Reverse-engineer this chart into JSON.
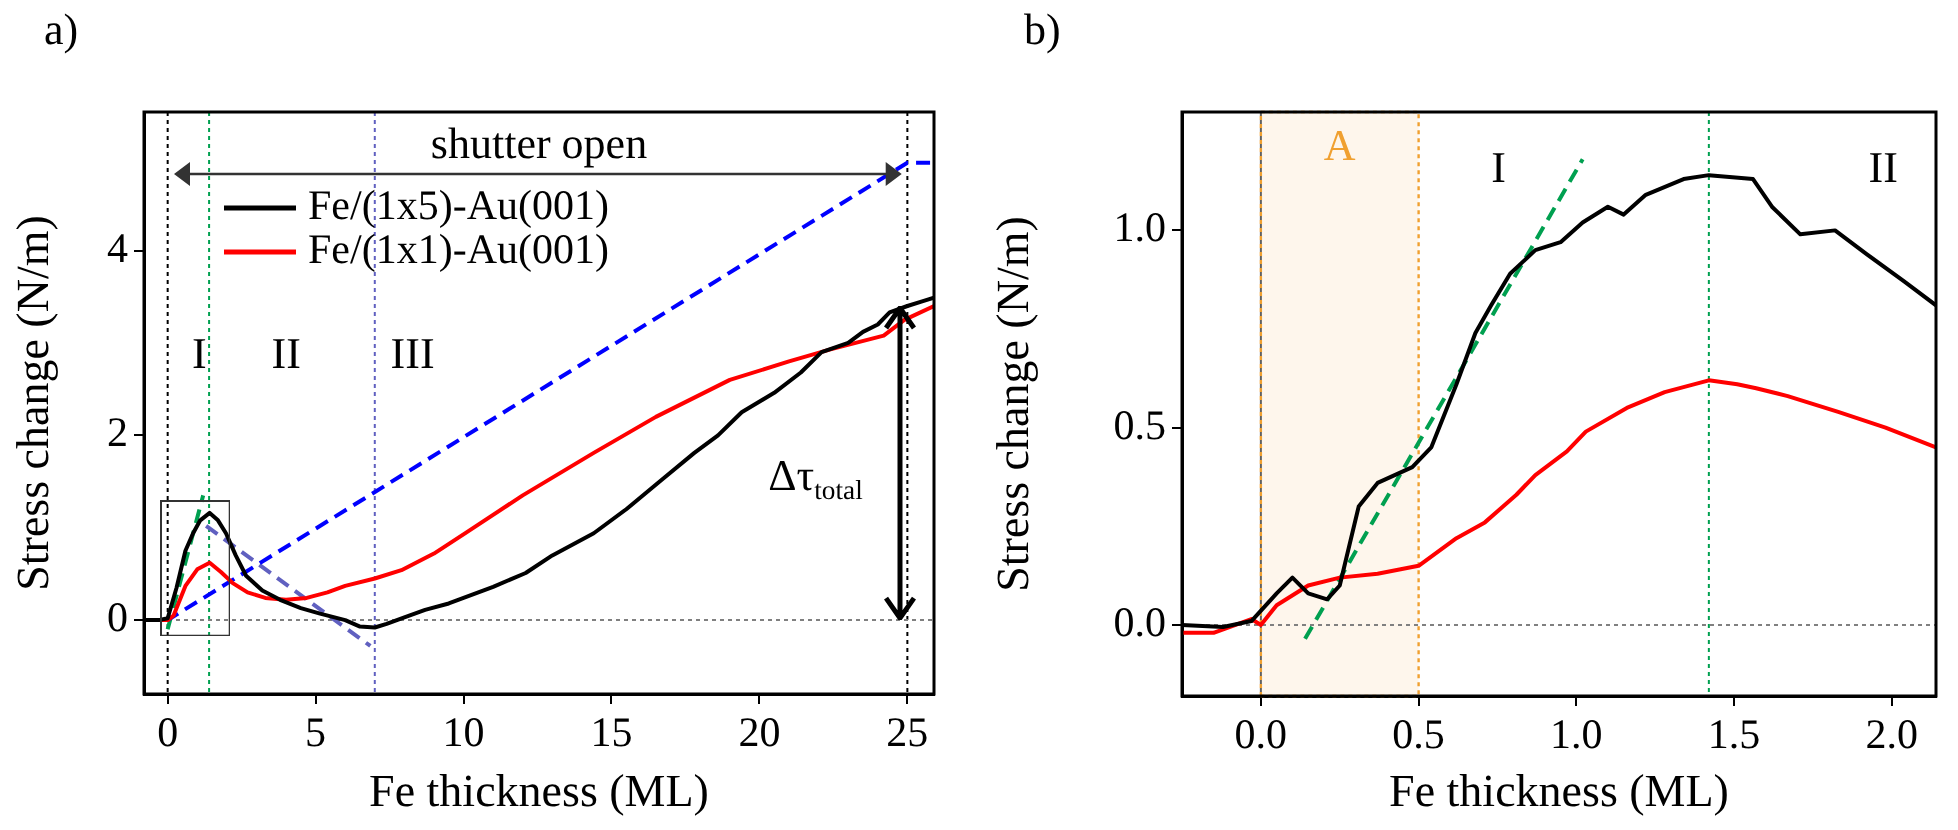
{
  "chart_data": [
    {
      "type": "line",
      "title": "a)",
      "xlabel": "Fe thickness (ML)",
      "ylabel": "Stress change (N/m)",
      "xlim": [
        -0.8,
        25.9
      ],
      "xticks": [
        0,
        5,
        10,
        15,
        20,
        25
      ],
      "ylim": [
        -0.8,
        5.5
      ],
      "yticks": [
        0,
        2,
        4
      ],
      "grid": false,
      "legend": "top left",
      "series": [
        {
          "name": "Fe/(1x5)-Au(001)",
          "color": "#000000",
          "x": [
            -0.8,
            -0.3,
            0,
            0.3,
            0.6,
            0.86,
            1.1,
            1.42,
            1.7,
            1.97,
            2.3,
            2.65,
            3.2,
            3.8,
            4.5,
            5.15,
            6,
            6.5,
            7,
            7.4,
            8,
            8.7,
            9.5,
            10,
            11,
            12.1,
            13,
            14.4,
            15.5,
            16.7,
            17.8,
            18.6,
            19.4,
            20.5,
            21.4,
            22.1,
            23,
            23.5,
            24,
            24.4,
            25,
            25.5,
            25.9
          ],
          "values": [
            0,
            0,
            0.02,
            0.35,
            0.75,
            0.94,
            1.08,
            1.16,
            1.08,
            0.94,
            0.7,
            0.48,
            0.32,
            0.22,
            0.13,
            0.07,
            0,
            -0.07,
            -0.08,
            -0.04,
            0.03,
            0.11,
            0.18,
            0.24,
            0.36,
            0.51,
            0.7,
            0.94,
            1.2,
            1.52,
            1.81,
            2.0,
            2.25,
            2.46,
            2.68,
            2.9,
            3.0,
            3.12,
            3.2,
            3.33,
            3.4,
            3.45,
            3.49
          ]
        },
        {
          "name": "Fe/(1x1)-Au(001)",
          "color": "#ff0000",
          "x": [
            -0.8,
            0,
            0.2,
            0.6,
            1.0,
            1.42,
            1.8,
            2.2,
            2.7,
            3.3,
            4.0,
            4.7,
            5.4,
            6,
            7,
            7.9,
            9,
            10.1,
            12,
            14.4,
            16.5,
            19,
            21,
            22.4,
            24.2,
            24.9,
            25.9
          ],
          "values": [
            0,
            0,
            0.05,
            0.37,
            0.55,
            0.62,
            0.52,
            0.4,
            0.3,
            0.24,
            0.22,
            0.24,
            0.3,
            0.37,
            0.45,
            0.54,
            0.72,
            0.95,
            1.35,
            1.81,
            2.2,
            2.6,
            2.8,
            2.93,
            3.08,
            3.25,
            3.4
          ]
        },
        {
          "color": "#0000ff",
          "line_style": "dashed",
          "x": [
            -0.8,
            0,
            25,
            25.9
          ],
          "values": [
            0,
            0,
            4.95,
            4.95
          ]
        },
        {
          "color": "#00a050",
          "line_style": "dashed",
          "x": [
            0,
            1.2
          ],
          "values": [
            -0.1,
            1.35
          ]
        },
        {
          "color": "#6060c0",
          "line_style": "dashed",
          "x": [
            1.3,
            6.85
          ],
          "values": [
            1.02,
            -0.28
          ]
        }
      ],
      "ref_lines": [
        {
          "axis": "x",
          "value": 0,
          "color": "#000000",
          "line_style": "dotted"
        },
        {
          "axis": "x",
          "value": 25,
          "color": "#000000",
          "line_style": "dotted"
        },
        {
          "axis": "x",
          "value": 1.4,
          "color": "#00a050",
          "line_style": "dotted"
        },
        {
          "axis": "x",
          "value": 7,
          "color": "#6060c0",
          "line_style": "dotted"
        },
        {
          "axis": "y",
          "value": 0,
          "color": "#808080",
          "line_style": "dotted"
        }
      ],
      "annotations": [
        "I",
        "II",
        "III",
        "shutter open",
        "Δτ$_{total}$"
      ]
    },
    {
      "type": "line",
      "title": "b)",
      "xlabel": "Fe thickness (ML)",
      "ylabel": "Stress change (N/m)",
      "xlim": [
        -0.25,
        2.14
      ],
      "xticks": [
        {
          "value": 0,
          "label": "0.0"
        },
        {
          "value": 0.5,
          "label": "0.5"
        },
        {
          "value": 1,
          "label": "1.0"
        },
        {
          "value": 1.5,
          "label": "1.5"
        },
        {
          "value": 2,
          "label": "2.0"
        }
      ],
      "ylim": [
        -0.18,
        1.3
      ],
      "yticks": [
        {
          "value": 0,
          "label": "0.0"
        },
        {
          "value": 0.5,
          "label": "0.5"
        },
        {
          "value": 1,
          "label": "1.0"
        }
      ],
      "grid": false,
      "series": [
        {
          "color": "#000000",
          "x": [
            -0.25,
            -0.12,
            -0.03,
            0.05,
            0.1,
            0.15,
            0.21,
            0.25,
            0.31,
            0.37,
            0.48,
            0.54,
            0.62,
            0.68,
            0.73,
            0.79,
            0.87,
            0.95,
            1.02,
            1.1,
            1.15,
            1.22,
            1.34,
            1.42,
            1.56,
            1.62,
            1.71,
            1.82,
            1.92,
            2.04,
            2.14
          ],
          "values": [
            0,
            -0.005,
            0.01,
            0.08,
            0.12,
            0.08,
            0.065,
            0.1,
            0.3,
            0.36,
            0.4,
            0.45,
            0.61,
            0.74,
            0.81,
            0.89,
            0.95,
            0.97,
            1.02,
            1.06,
            1.04,
            1.09,
            1.13,
            1.14,
            1.13,
            1.06,
            0.99,
            1.0,
            0.94,
            0.87,
            0.81
          ]
        },
        {
          "color": "#ff0000",
          "x": [
            -0.25,
            -0.15,
            -0.03,
            0,
            0.05,
            0.15,
            0.25,
            0.37,
            0.5,
            0.62,
            0.71,
            0.81,
            0.87,
            0.97,
            1.03,
            1.16,
            1.28,
            1.42,
            1.51,
            1.57,
            1.67,
            1.83,
            1.98,
            2.14
          ],
          "values": [
            -0.02,
            -0.02,
            0.015,
            0,
            0.05,
            0.1,
            0.12,
            0.13,
            0.15,
            0.22,
            0.26,
            0.33,
            0.38,
            0.44,
            0.49,
            0.55,
            0.59,
            0.62,
            0.61,
            0.6,
            0.58,
            0.54,
            0.5,
            0.45
          ]
        },
        {
          "color": "#00a050",
          "line_style": "dashed",
          "x": [
            0.14,
            1.02
          ],
          "values": [
            -0.035,
            1.18
          ]
        }
      ],
      "ref_lines": [
        {
          "axis": "x",
          "value": 0,
          "color": "#606060",
          "line_style": "dotted"
        },
        {
          "axis": "x",
          "value": 1.42,
          "color": "#00a050",
          "line_style": "dotted"
        },
        {
          "axis": "y",
          "value": 0,
          "color": "#808080",
          "line_style": "dotted"
        }
      ],
      "bands": [
        {
          "axis": "x",
          "from": 0,
          "to": 0.5,
          "label": "A",
          "color": "#f0a030"
        }
      ],
      "annotations": [
        "I",
        "II"
      ]
    }
  ]
}
